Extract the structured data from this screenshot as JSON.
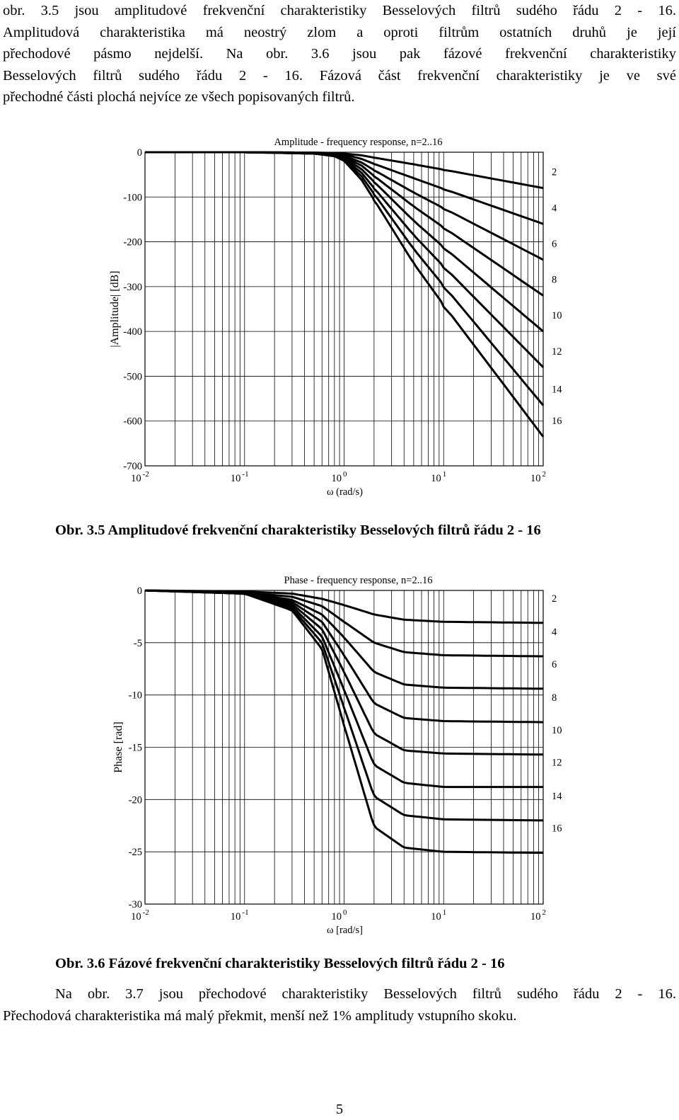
{
  "paragraph_top": {
    "lines": [
      "obr. 3.5 jsou amplitudové frekvenční charakteristiky Besselových filtrů sudého řádu 2 - 16.",
      "Amplitudová charakteristika má neostrý zlom a oproti filtrům ostatních druhů je její",
      "přechodové pásmo nejdelší. Na obr. 3.6 jsou pak fázové frekvenční charakteristiky",
      "Besselových filtrů sudého řádu 2 - 16. Fázová část frekvenční charakteristiky je ve své",
      "přechodné části plochá nejvíce ze všech popisovaných filtrů."
    ]
  },
  "figure_1": {
    "caption": "Obr. 3.5 Amplitudové frekvenční charakteristiky Besselových filtrů řádu 2 - 16"
  },
  "figure_2": {
    "caption": "Obr. 3.6 Fázové frekvenční charakteristiky Besselových filtrů řádu 2 - 16"
  },
  "paragraph_bottom": {
    "lines": [
      "Na obr. 3.7 jsou přechodové charakteristiky Besselových filtrů sudého řádu 2 - 16.",
      "Přechodová charakteristika má malý překmit, menší než 1% amplitudy vstupního skoku."
    ]
  },
  "page_number": "5",
  "chart_data": [
    {
      "type": "line",
      "title": "Amplitude - frequency response, n=2..16",
      "xlabel": "ω (rad/s)",
      "ylabel": "|Amplitude| [dB]",
      "x_scale": "log",
      "xlim": [
        0.01,
        100
      ],
      "ylim": [
        -700,
        0
      ],
      "x_tick_labels": [
        {
          "base": "10",
          "exp": "-2"
        },
        {
          "base": "10",
          "exp": "-1"
        },
        {
          "base": "10",
          "exp": "0"
        },
        {
          "base": "10",
          "exp": "1"
        },
        {
          "base": "10",
          "exp": "2"
        }
      ],
      "y_ticks": [
        0,
        -100,
        -200,
        -300,
        -400,
        -500,
        -600,
        -700
      ],
      "grid": true,
      "series": [
        {
          "name": "2",
          "x": [
            0.01,
            0.1,
            0.5,
            0.8,
            1,
            1.5,
            2,
            5,
            10,
            100
          ],
          "y": [
            0,
            0,
            -1,
            -2,
            -3,
            -7,
            -12,
            -27,
            -39,
            -80
          ]
        },
        {
          "name": "4",
          "x": [
            0.01,
            0.1,
            0.5,
            0.8,
            1,
            1.5,
            2,
            5,
            10,
            100
          ],
          "y": [
            0,
            0,
            -1,
            -3,
            -5,
            -15,
            -26,
            -58,
            -82,
            -160
          ]
        },
        {
          "name": "6",
          "x": [
            0.01,
            0.1,
            0.5,
            0.8,
            1,
            1.5,
            2,
            5,
            10,
            100
          ],
          "y": [
            0,
            0,
            -2,
            -4,
            -8,
            -23,
            -40,
            -90,
            -125,
            -240
          ]
        },
        {
          "name": "8",
          "x": [
            0.01,
            0.1,
            0.5,
            0.8,
            1,
            1.5,
            2,
            5,
            10,
            100
          ],
          "y": [
            0,
            0,
            -2,
            -5,
            -10,
            -30,
            -53,
            -121,
            -168,
            -320
          ]
        },
        {
          "name": "10",
          "x": [
            0.01,
            0.1,
            0.5,
            0.8,
            1,
            1.5,
            2,
            5,
            10,
            100
          ],
          "y": [
            0,
            0,
            -2,
            -6,
            -12,
            -38,
            -66,
            -153,
            -212,
            -400
          ]
        },
        {
          "name": "12",
          "x": [
            0.01,
            0.1,
            0.5,
            0.8,
            1,
            1.5,
            2,
            5,
            10,
            100
          ],
          "y": [
            0,
            0,
            -3,
            -7,
            -15,
            -46,
            -80,
            -185,
            -255,
            -480
          ]
        },
        {
          "name": "14",
          "x": [
            0.01,
            0.1,
            0.5,
            0.8,
            1,
            1.5,
            2,
            5,
            10,
            100
          ],
          "y": [
            0,
            0,
            -3,
            -8,
            -17,
            -54,
            -93,
            -216,
            -298,
            -565
          ]
        },
        {
          "name": "16",
          "x": [
            0.01,
            0.1,
            0.5,
            0.8,
            1,
            1.5,
            2,
            5,
            10,
            100
          ],
          "y": [
            0,
            0,
            -3,
            -9,
            -19,
            -62,
            -106,
            -248,
            -341,
            -635
          ]
        }
      ]
    },
    {
      "type": "line",
      "title": "Phase - frequency response, n=2..16",
      "xlabel": "ω [rad/s]",
      "ylabel": "Phase [rad]",
      "x_scale": "log",
      "xlim": [
        0.01,
        100
      ],
      "ylim": [
        -30,
        0
      ],
      "x_tick_labels": [
        {
          "base": "10",
          "exp": "-2"
        },
        {
          "base": "10",
          "exp": "-1"
        },
        {
          "base": "10",
          "exp": "0"
        },
        {
          "base": "10",
          "exp": "1"
        },
        {
          "base": "10",
          "exp": "2"
        }
      ],
      "y_ticks": [
        0,
        -5,
        -10,
        -15,
        -20,
        -25,
        -30
      ],
      "grid": true,
      "series": [
        {
          "name": "2",
          "x": [
            0.01,
            0.1,
            0.3,
            0.6,
            1,
            2,
            4,
            10,
            100
          ],
          "y": [
            0,
            -0.1,
            -0.3,
            -0.8,
            -1.4,
            -2.3,
            -2.8,
            -3.0,
            -3.1
          ]
        },
        {
          "name": "4",
          "x": [
            0.01,
            0.1,
            0.3,
            0.6,
            1,
            2,
            4,
            10,
            100
          ],
          "y": [
            0,
            -0.2,
            -0.6,
            -1.5,
            -3.0,
            -5.0,
            -5.9,
            -6.2,
            -6.3
          ]
        },
        {
          "name": "6",
          "x": [
            0.01,
            0.1,
            0.3,
            0.6,
            1,
            2,
            4,
            10,
            100
          ],
          "y": [
            0,
            -0.2,
            -0.9,
            -2.3,
            -4.5,
            -7.8,
            -9.0,
            -9.3,
            -9.4
          ]
        },
        {
          "name": "8",
          "x": [
            0.01,
            0.1,
            0.3,
            0.6,
            1,
            2,
            4,
            10,
            100
          ],
          "y": [
            0,
            -0.2,
            -1.1,
            -3.0,
            -6.2,
            -10.8,
            -12.2,
            -12.5,
            -12.6
          ]
        },
        {
          "name": "10",
          "x": [
            0.01,
            0.1,
            0.3,
            0.6,
            1,
            2,
            4,
            10,
            100
          ],
          "y": [
            0,
            -0.3,
            -1.3,
            -3.7,
            -7.8,
            -13.7,
            -15.3,
            -15.6,
            -15.7
          ]
        },
        {
          "name": "12",
          "x": [
            0.01,
            0.1,
            0.3,
            0.6,
            1,
            2,
            4,
            10,
            100
          ],
          "y": [
            0,
            -0.3,
            -1.5,
            -4.4,
            -9.5,
            -16.7,
            -18.4,
            -18.8,
            -18.8
          ]
        },
        {
          "name": "14",
          "x": [
            0.01,
            0.1,
            0.3,
            0.6,
            1,
            2,
            4,
            10,
            100
          ],
          "y": [
            0,
            -0.3,
            -1.7,
            -5.0,
            -11.2,
            -19.7,
            -21.5,
            -21.9,
            -22.0
          ]
        },
        {
          "name": "16",
          "x": [
            0.01,
            0.1,
            0.3,
            0.6,
            1,
            2,
            4,
            10,
            100
          ],
          "y": [
            0,
            -0.3,
            -1.9,
            -5.6,
            -12.9,
            -22.6,
            -24.6,
            -25.0,
            -25.1
          ]
        }
      ]
    }
  ]
}
